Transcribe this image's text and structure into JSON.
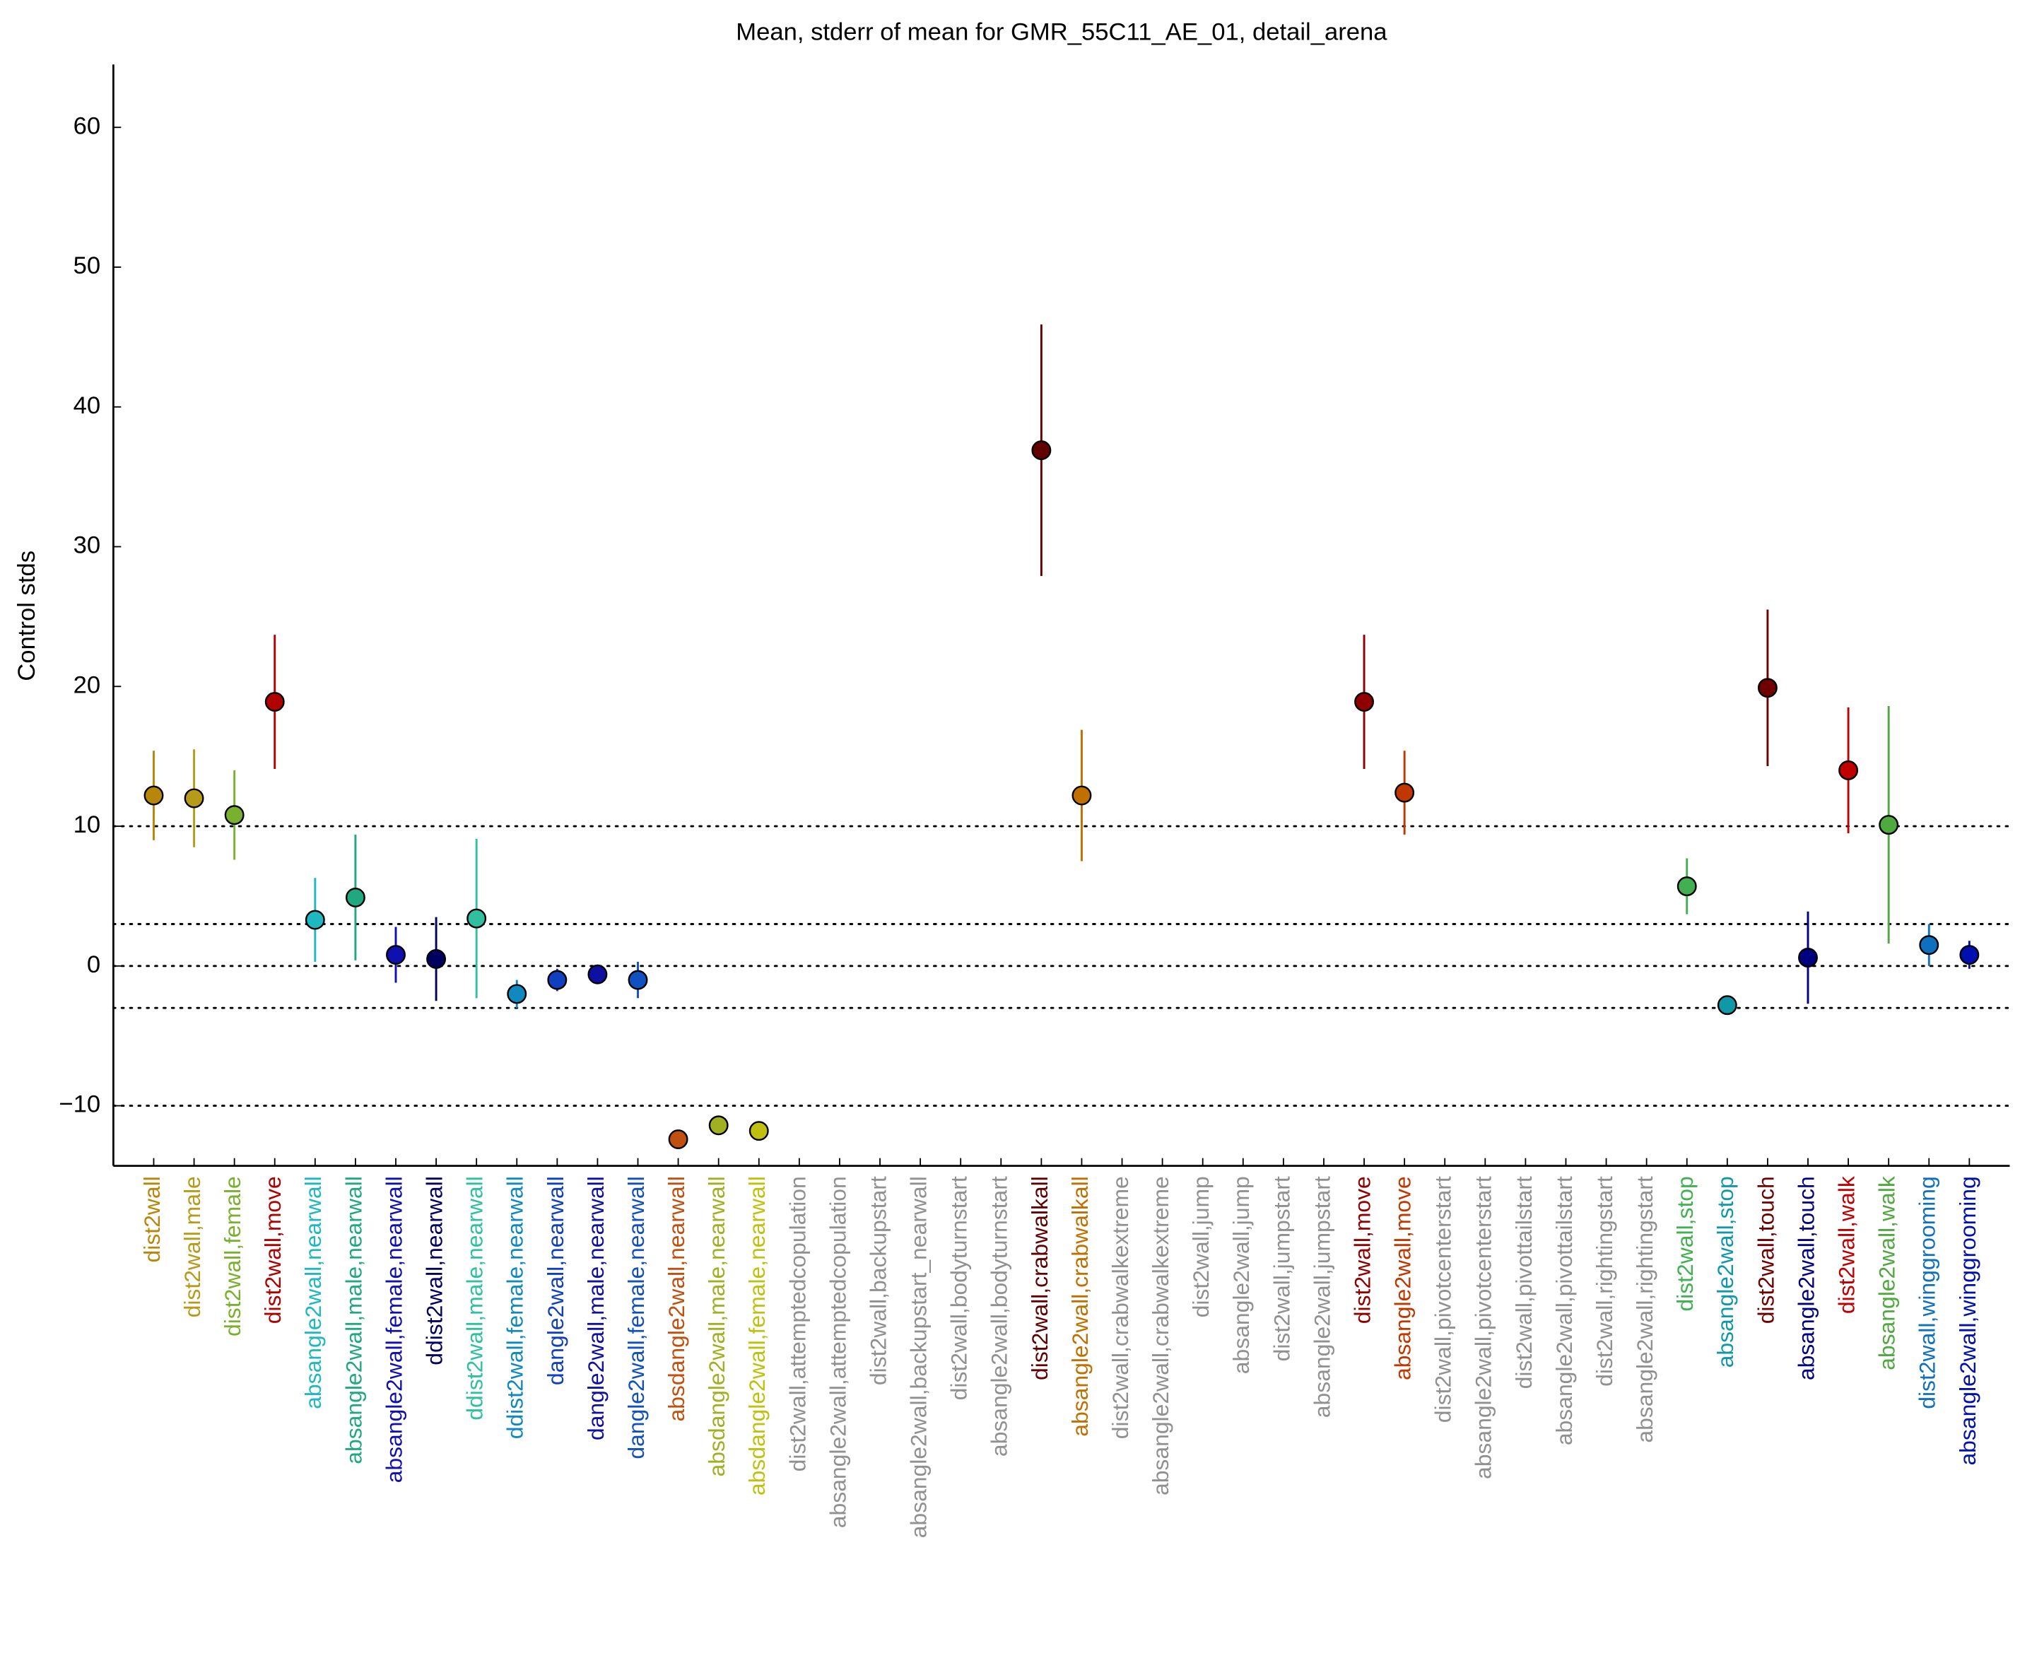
{
  "chart_data": {
    "type": "errorbar",
    "title": "Mean, stderr of mean for GMR_55C11_AE_01, detail_arena",
    "ylabel": "Control stds",
    "categories": [
      "dist2wall",
      "dist2wall,male",
      "dist2wall,female",
      "dist2wall,move",
      "absangle2wall,nearwall",
      "absangle2wall,male,nearwall",
      "absangle2wall,female,nearwall",
      "ddist2wall,nearwall",
      "ddist2wall,male,nearwall",
      "ddist2wall,female,nearwall",
      "dangle2wall,nearwall",
      "dangle2wall,male,nearwall",
      "dangle2wall,female,nearwall",
      "absdangle2wall,nearwall",
      "absdangle2wall,male,nearwall",
      "absdangle2wall,female,nearwall",
      "dist2wall,attemptedcopulation",
      "absangle2wall,attemptedcopulation",
      "dist2wall,backupstart",
      "absangle2wall,backupstart_nearwall",
      "dist2wall,bodyturnstart",
      "absangle2wall,bodyturnstart",
      "dist2wall,crabwalkall",
      "absangle2wall,crabwalkall",
      "dist2wall,crabwalkextreme",
      "absangle2wall,crabwalkextreme",
      "dist2wall,jump",
      "absangle2wall,jump",
      "dist2wall,jumpstart",
      "absangle2wall,jumpstart",
      "dist2wall,move",
      "absangle2wall,move",
      "dist2wall,pivotcenterstart",
      "absangle2wall,pivotcenterstart",
      "dist2wall,pivottailstart",
      "absangle2wall,pivottailstart",
      "dist2wall,rightingstart",
      "absangle2wall,rightingstart",
      "dist2wall,stop",
      "absangle2wall,stop",
      "dist2wall,touch",
      "absangle2wall,touch",
      "dist2wall,walk",
      "absangle2wall,walk",
      "dist2wall,winggrooming",
      "absangle2wall,winggrooming"
    ],
    "values": [
      12.2,
      12.0,
      10.8,
      18.9,
      3.3,
      4.9,
      0.8,
      0.5,
      3.4,
      -2.0,
      -1.0,
      -0.6,
      -1.0,
      -12.4,
      -11.4,
      -11.8,
      null,
      null,
      null,
      null,
      null,
      null,
      36.9,
      12.2,
      null,
      null,
      null,
      null,
      null,
      null,
      18.9,
      12.4,
      null,
      null,
      null,
      null,
      null,
      null,
      5.7,
      -2.8,
      19.9,
      0.6,
      14.0,
      10.1,
      1.5,
      0.8
    ],
    "errors": [
      3.2,
      3.5,
      3.2,
      4.8,
      3.0,
      4.5,
      2.0,
      3.0,
      5.7,
      1.0,
      0.8,
      0.7,
      1.3,
      0.3,
      0.3,
      0.3,
      null,
      null,
      null,
      null,
      null,
      null,
      9.0,
      4.7,
      null,
      null,
      null,
      null,
      null,
      null,
      4.8,
      3.0,
      null,
      null,
      null,
      null,
      null,
      null,
      2.0,
      0.5,
      5.6,
      3.3,
      4.5,
      8.5,
      1.5,
      1.0
    ],
    "colors": [
      "#b8860b",
      "#b89a1a",
      "#7ab030",
      "#b00000",
      "#20b8c0",
      "#20a880",
      "#1010b0",
      "#000060",
      "#30c0a0",
      "#1088c0",
      "#1040c0",
      "#1010a0",
      "#1050c0",
      "#c05010",
      "#a0b020",
      "#c0c010",
      "#909090",
      "#909090",
      "#909090",
      "#909090",
      "#909090",
      "#909090",
      "#600000",
      "#c07000",
      "#909090",
      "#909090",
      "#909090",
      "#909090",
      "#909090",
      "#909090",
      "#900000",
      "#c03800",
      "#909090",
      "#909090",
      "#909090",
      "#909090",
      "#909090",
      "#909090",
      "#40b050",
      "#1098a8",
      "#700000",
      "#000080",
      "#c00000",
      "#50a840",
      "#1070c0",
      "#0010b0"
    ],
    "xlim": [
      0,
      47
    ],
    "ylim": [
      -14.3,
      64.5
    ],
    "yticks": [
      {
        "value": -10,
        "label": "−10"
      },
      0,
      10,
      20,
      30,
      40,
      50,
      60
    ],
    "hlines": [
      10,
      3,
      0,
      -3,
      -10
    ]
  }
}
